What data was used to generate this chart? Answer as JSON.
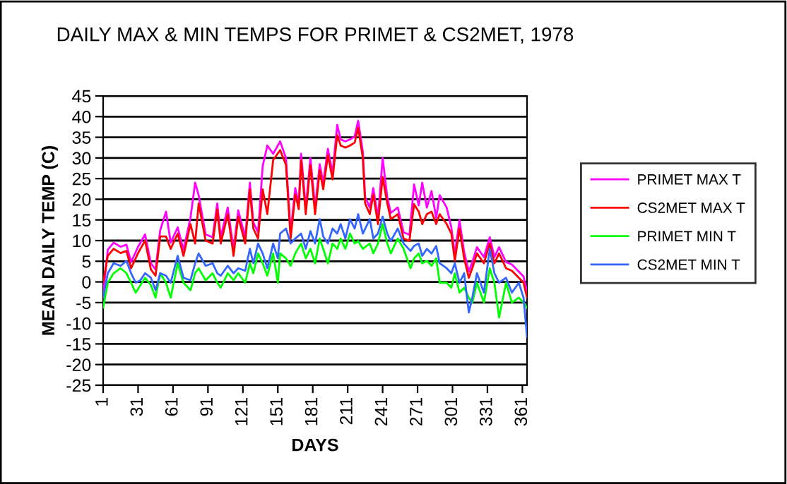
{
  "chart_data": {
    "type": "line",
    "title": "DAILY MAX & MIN TEMPS FOR PRIMET & CS2MET, 1978",
    "xlabel": "DAYS",
    "ylabel": "MEAN DAILY TEMP (C)",
    "xlim": [
      1,
      365
    ],
    "xticks": [
      1,
      31,
      61,
      91,
      121,
      151,
      181,
      211,
      241,
      271,
      301,
      331,
      361
    ],
    "ylim": [
      -25,
      45
    ],
    "yticks": [
      -25,
      -20,
      -15,
      -10,
      -5,
      0,
      5,
      10,
      15,
      20,
      25,
      30,
      35,
      40,
      45
    ],
    "grid": "y",
    "legend": "right",
    "marker": "none",
    "line_style": "solid",
    "series": [
      {
        "name": "PRIMET MAX T",
        "color": "#ff00ff",
        "x": [
          1,
          5,
          10,
          16,
          21,
          25,
          31,
          37,
          42,
          46,
          50,
          55,
          59,
          65,
          70,
          76,
          80,
          83,
          89,
          95,
          99,
          102,
          108,
          113,
          117,
          123,
          127,
          130,
          134,
          138,
          142,
          147,
          153,
          158,
          162,
          166,
          169,
          171,
          175,
          179,
          183,
          187,
          190,
          194,
          198,
          202,
          205,
          209,
          213,
          217,
          220,
          224,
          226,
          230,
          233,
          237,
          241,
          245,
          248,
          254,
          259,
          264,
          268,
          272,
          275,
          279,
          283,
          287,
          290,
          296,
          300,
          303,
          307,
          311,
          315,
          318,
          322,
          328,
          333,
          337,
          341,
          347,
          352,
          358,
          362,
          365
        ],
        "values": [
          -3,
          7.8,
          9.5,
          8.5,
          9,
          4.8,
          8.5,
          11.5,
          4.5,
          3,
          12.5,
          17,
          9.5,
          13.2,
          7.8,
          15.5,
          24,
          21,
          11.5,
          10.8,
          19,
          10.8,
          18,
          7.8,
          17.3,
          10.8,
          24,
          14.4,
          12,
          28,
          33,
          31,
          34,
          30,
          12,
          22.7,
          19,
          31,
          18,
          30,
          18,
          28.5,
          24,
          32.2,
          26.3,
          38,
          34.5,
          34,
          34.5,
          35.2,
          39,
          31.5,
          20.5,
          18,
          22.7,
          15.5,
          30,
          20.5,
          16.7,
          18,
          12,
          11.4,
          23.6,
          18.5,
          24,
          18,
          22,
          15.5,
          21,
          18,
          13.2,
          6.6,
          15,
          7.2,
          2.5,
          4.8,
          8.4,
          6,
          10.8,
          6,
          8.4,
          4.8,
          4.2,
          2.5,
          1.3,
          -2.3
        ]
      },
      {
        "name": "CS2MET MAX T",
        "color": "#ff0000",
        "x": [
          1,
          5,
          10,
          16,
          21,
          25,
          31,
          37,
          42,
          46,
          50,
          55,
          59,
          65,
          70,
          76,
          80,
          83,
          89,
          95,
          99,
          102,
          108,
          113,
          117,
          123,
          127,
          130,
          134,
          138,
          142,
          147,
          153,
          158,
          162,
          166,
          169,
          171,
          175,
          179,
          183,
          187,
          190,
          194,
          198,
          202,
          205,
          209,
          213,
          217,
          220,
          224,
          226,
          230,
          233,
          237,
          241,
          245,
          248,
          254,
          259,
          264,
          268,
          272,
          275,
          279,
          283,
          287,
          290,
          296,
          300,
          303,
          307,
          311,
          315,
          318,
          322,
          328,
          333,
          337,
          341,
          347,
          352,
          358,
          362,
          365
        ],
        "values": [
          0,
          6.3,
          8,
          7,
          7.5,
          3.3,
          7,
          10,
          3,
          1.5,
          11,
          11,
          8,
          11.7,
          6.3,
          14,
          9.3,
          19,
          10,
          9.3,
          17.6,
          9.3,
          16.4,
          6.3,
          15.8,
          9.3,
          22.4,
          12.9,
          10.5,
          22.4,
          16.4,
          29.5,
          31.9,
          28.3,
          10.5,
          21.2,
          17.6,
          29.5,
          16.4,
          28.3,
          16.4,
          27,
          22.4,
          30.7,
          24.8,
          35.5,
          33,
          32.5,
          33,
          33.7,
          37.3,
          30,
          19,
          16.4,
          21.2,
          14,
          25.4,
          19,
          15.2,
          16.4,
          10.5,
          9.9,
          18.8,
          17,
          14,
          16.4,
          17,
          14,
          16.4,
          14,
          11.7,
          5.1,
          12.9,
          5.7,
          1,
          3.3,
          6.9,
          4.5,
          9.3,
          4.5,
          6.9,
          3.3,
          2.7,
          1,
          -0.2,
          -3.8
        ]
      },
      {
        "name": "PRIMET MIN T",
        "color": "#00ff00",
        "x": [
          1,
          5,
          10,
          16,
          21,
          25,
          29,
          33,
          37,
          42,
          46,
          50,
          55,
          59,
          65,
          70,
          76,
          80,
          83,
          89,
          95,
          99,
          102,
          108,
          113,
          117,
          123,
          127,
          130,
          134,
          138,
          142,
          147,
          151,
          153,
          158,
          162,
          166,
          171,
          175,
          179,
          183,
          187,
          190,
          194,
          198,
          202,
          205,
          209,
          213,
          217,
          220,
          224,
          230,
          233,
          237,
          241,
          245,
          248,
          254,
          259,
          265,
          268,
          272,
          275,
          279,
          283,
          287,
          290,
          296,
          300,
          303,
          307,
          311,
          315,
          318,
          322,
          328,
          333,
          337,
          341,
          347,
          352,
          358,
          362,
          365
        ],
        "values": [
          -6.2,
          -0.2,
          2.1,
          3.3,
          2.1,
          -0.2,
          -2.6,
          -0.8,
          1,
          -0.8,
          -3.8,
          2.1,
          -0.2,
          -3.8,
          4.5,
          -0.2,
          -2,
          2.1,
          3.3,
          0.4,
          2.1,
          -0.2,
          -1.4,
          2.1,
          0.4,
          2.1,
          -0.2,
          4.5,
          2.1,
          6.9,
          4.5,
          1.5,
          6.9,
          -0.2,
          6.9,
          5.7,
          3.9,
          6.9,
          9.3,
          5.7,
          8,
          4.5,
          10.5,
          8,
          4.5,
          9.3,
          8,
          10.5,
          8,
          11.7,
          9.3,
          9.9,
          8,
          9.3,
          6.9,
          9.3,
          14,
          9.3,
          6.9,
          10.5,
          8,
          3.3,
          5.7,
          6.9,
          4.5,
          5.1,
          3.9,
          5.7,
          -0.2,
          -0.2,
          -1.4,
          2.1,
          -2.6,
          -1.4,
          -3.8,
          -5,
          -0.2,
          -5,
          3.3,
          -0.2,
          -8.6,
          -0.2,
          -5,
          -3.8,
          -5,
          -6.2
        ]
      },
      {
        "name": "CS2MET MIN T",
        "color": "#3366ff",
        "x": [
          1,
          5,
          10,
          16,
          21,
          25,
          29,
          33,
          37,
          42,
          46,
          50,
          55,
          59,
          65,
          70,
          76,
          80,
          83,
          89,
          95,
          99,
          102,
          108,
          113,
          117,
          123,
          127,
          130,
          134,
          138,
          142,
          147,
          151,
          153,
          158,
          162,
          166,
          171,
          175,
          179,
          183,
          187,
          190,
          194,
          198,
          202,
          205,
          209,
          213,
          217,
          220,
          224,
          230,
          233,
          237,
          241,
          245,
          248,
          254,
          259,
          265,
          268,
          272,
          275,
          279,
          283,
          287,
          290,
          296,
          300,
          303,
          307,
          311,
          315,
          318,
          322,
          328,
          333,
          337,
          341,
          347,
          352,
          358,
          362,
          365
        ],
        "values": [
          -3.8,
          2.1,
          4.5,
          3.9,
          5.1,
          2.1,
          -0.2,
          0.4,
          2.1,
          1,
          -2,
          2.1,
          1.5,
          -0.2,
          6.3,
          1,
          0.4,
          4.5,
          6.9,
          3.9,
          4.5,
          2.1,
          1.5,
          3.9,
          2.1,
          3.3,
          2.7,
          8,
          4.5,
          9.3,
          6.9,
          3.3,
          9.3,
          5.7,
          11.7,
          12.9,
          9.3,
          10.5,
          11.7,
          8,
          12.3,
          9.3,
          15.2,
          11,
          9.3,
          12.9,
          11.7,
          14,
          10.5,
          15.2,
          12.9,
          16.4,
          11.7,
          15.2,
          10.5,
          11.7,
          15.8,
          11.7,
          9.9,
          12.9,
          9.3,
          7.5,
          8.7,
          9.3,
          6.3,
          8,
          6.9,
          8.7,
          4.5,
          3.3,
          2.1,
          4.5,
          -0.2,
          2.1,
          -7.4,
          -3.8,
          2.1,
          -2.6,
          8,
          2.1,
          -0.2,
          1,
          -2.6,
          -0.2,
          -3.8,
          -13.3
        ]
      }
    ]
  }
}
